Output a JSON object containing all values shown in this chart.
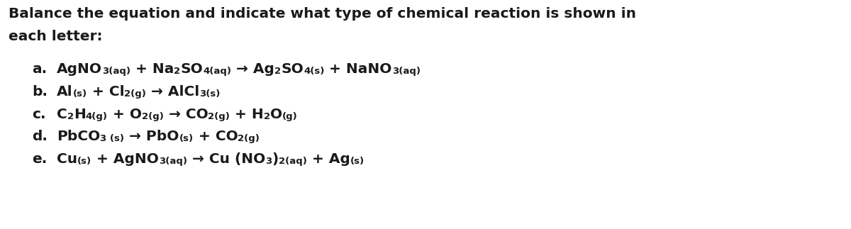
{
  "title_line1": "Balance the equation and indicate what type of chemical reaction is shown in",
  "title_line2": "each letter:",
  "background_color": "#ffffff",
  "text_color": "#1a1a1a",
  "title_fontsize": 14.5,
  "equation_fontsize": 14.5,
  "sub_fontsize": 9.5,
  "equations": [
    {
      "label": "a.",
      "parts": [
        {
          "text": "AgNO",
          "style": "normal"
        },
        {
          "text": "3(aq)",
          "style": "sub"
        },
        {
          "text": " + Na",
          "style": "normal"
        },
        {
          "text": "2",
          "style": "sub"
        },
        {
          "text": "SO",
          "style": "normal"
        },
        {
          "text": "4(aq)",
          "style": "sub"
        },
        {
          "text": " → Ag",
          "style": "normal"
        },
        {
          "text": "2",
          "style": "sub"
        },
        {
          "text": "SO",
          "style": "normal"
        },
        {
          "text": "4(s)",
          "style": "sub"
        },
        {
          "text": " + NaNO",
          "style": "normal"
        },
        {
          "text": "3(aq)",
          "style": "sub"
        }
      ]
    },
    {
      "label": "b.",
      "parts": [
        {
          "text": "Al",
          "style": "normal"
        },
        {
          "text": "(s)",
          "style": "sub"
        },
        {
          "text": " + Cl",
          "style": "normal"
        },
        {
          "text": "2(g)",
          "style": "sub"
        },
        {
          "text": " → AlCl",
          "style": "normal"
        },
        {
          "text": "3(s)",
          "style": "sub"
        }
      ]
    },
    {
      "label": "c.",
      "parts": [
        {
          "text": "C",
          "style": "normal"
        },
        {
          "text": "2",
          "style": "sub"
        },
        {
          "text": "H",
          "style": "normal"
        },
        {
          "text": "4(g)",
          "style": "sub"
        },
        {
          "text": " + O",
          "style": "normal"
        },
        {
          "text": "2(g)",
          "style": "sub"
        },
        {
          "text": " → CO",
          "style": "normal"
        },
        {
          "text": "2(g)",
          "style": "sub"
        },
        {
          "text": " + H",
          "style": "normal"
        },
        {
          "text": "2",
          "style": "sub"
        },
        {
          "text": "O",
          "style": "normal"
        },
        {
          "text": "(g)",
          "style": "sub"
        }
      ]
    },
    {
      "label": "d.",
      "parts": [
        {
          "text": "PbCO",
          "style": "normal"
        },
        {
          "text": "3 (s)",
          "style": "sub"
        },
        {
          "text": " → PbO",
          "style": "normal"
        },
        {
          "text": "(s)",
          "style": "sub"
        },
        {
          "text": " + CO",
          "style": "normal"
        },
        {
          "text": "2(g)",
          "style": "sub"
        }
      ]
    },
    {
      "label": "e.",
      "parts": [
        {
          "text": "Cu",
          "style": "normal"
        },
        {
          "text": "(s)",
          "style": "sub"
        },
        {
          "text": " + AgNO",
          "style": "normal"
        },
        {
          "text": "3(aq)",
          "style": "sub"
        },
        {
          "text": " → Cu (NO",
          "style": "normal"
        },
        {
          "text": "3",
          "style": "sub"
        },
        {
          "text": ")",
          "style": "normal"
        },
        {
          "text": "2(aq)",
          "style": "sub"
        },
        {
          "text": " + Ag",
          "style": "normal"
        },
        {
          "text": "(s)",
          "style": "sub"
        }
      ]
    }
  ]
}
